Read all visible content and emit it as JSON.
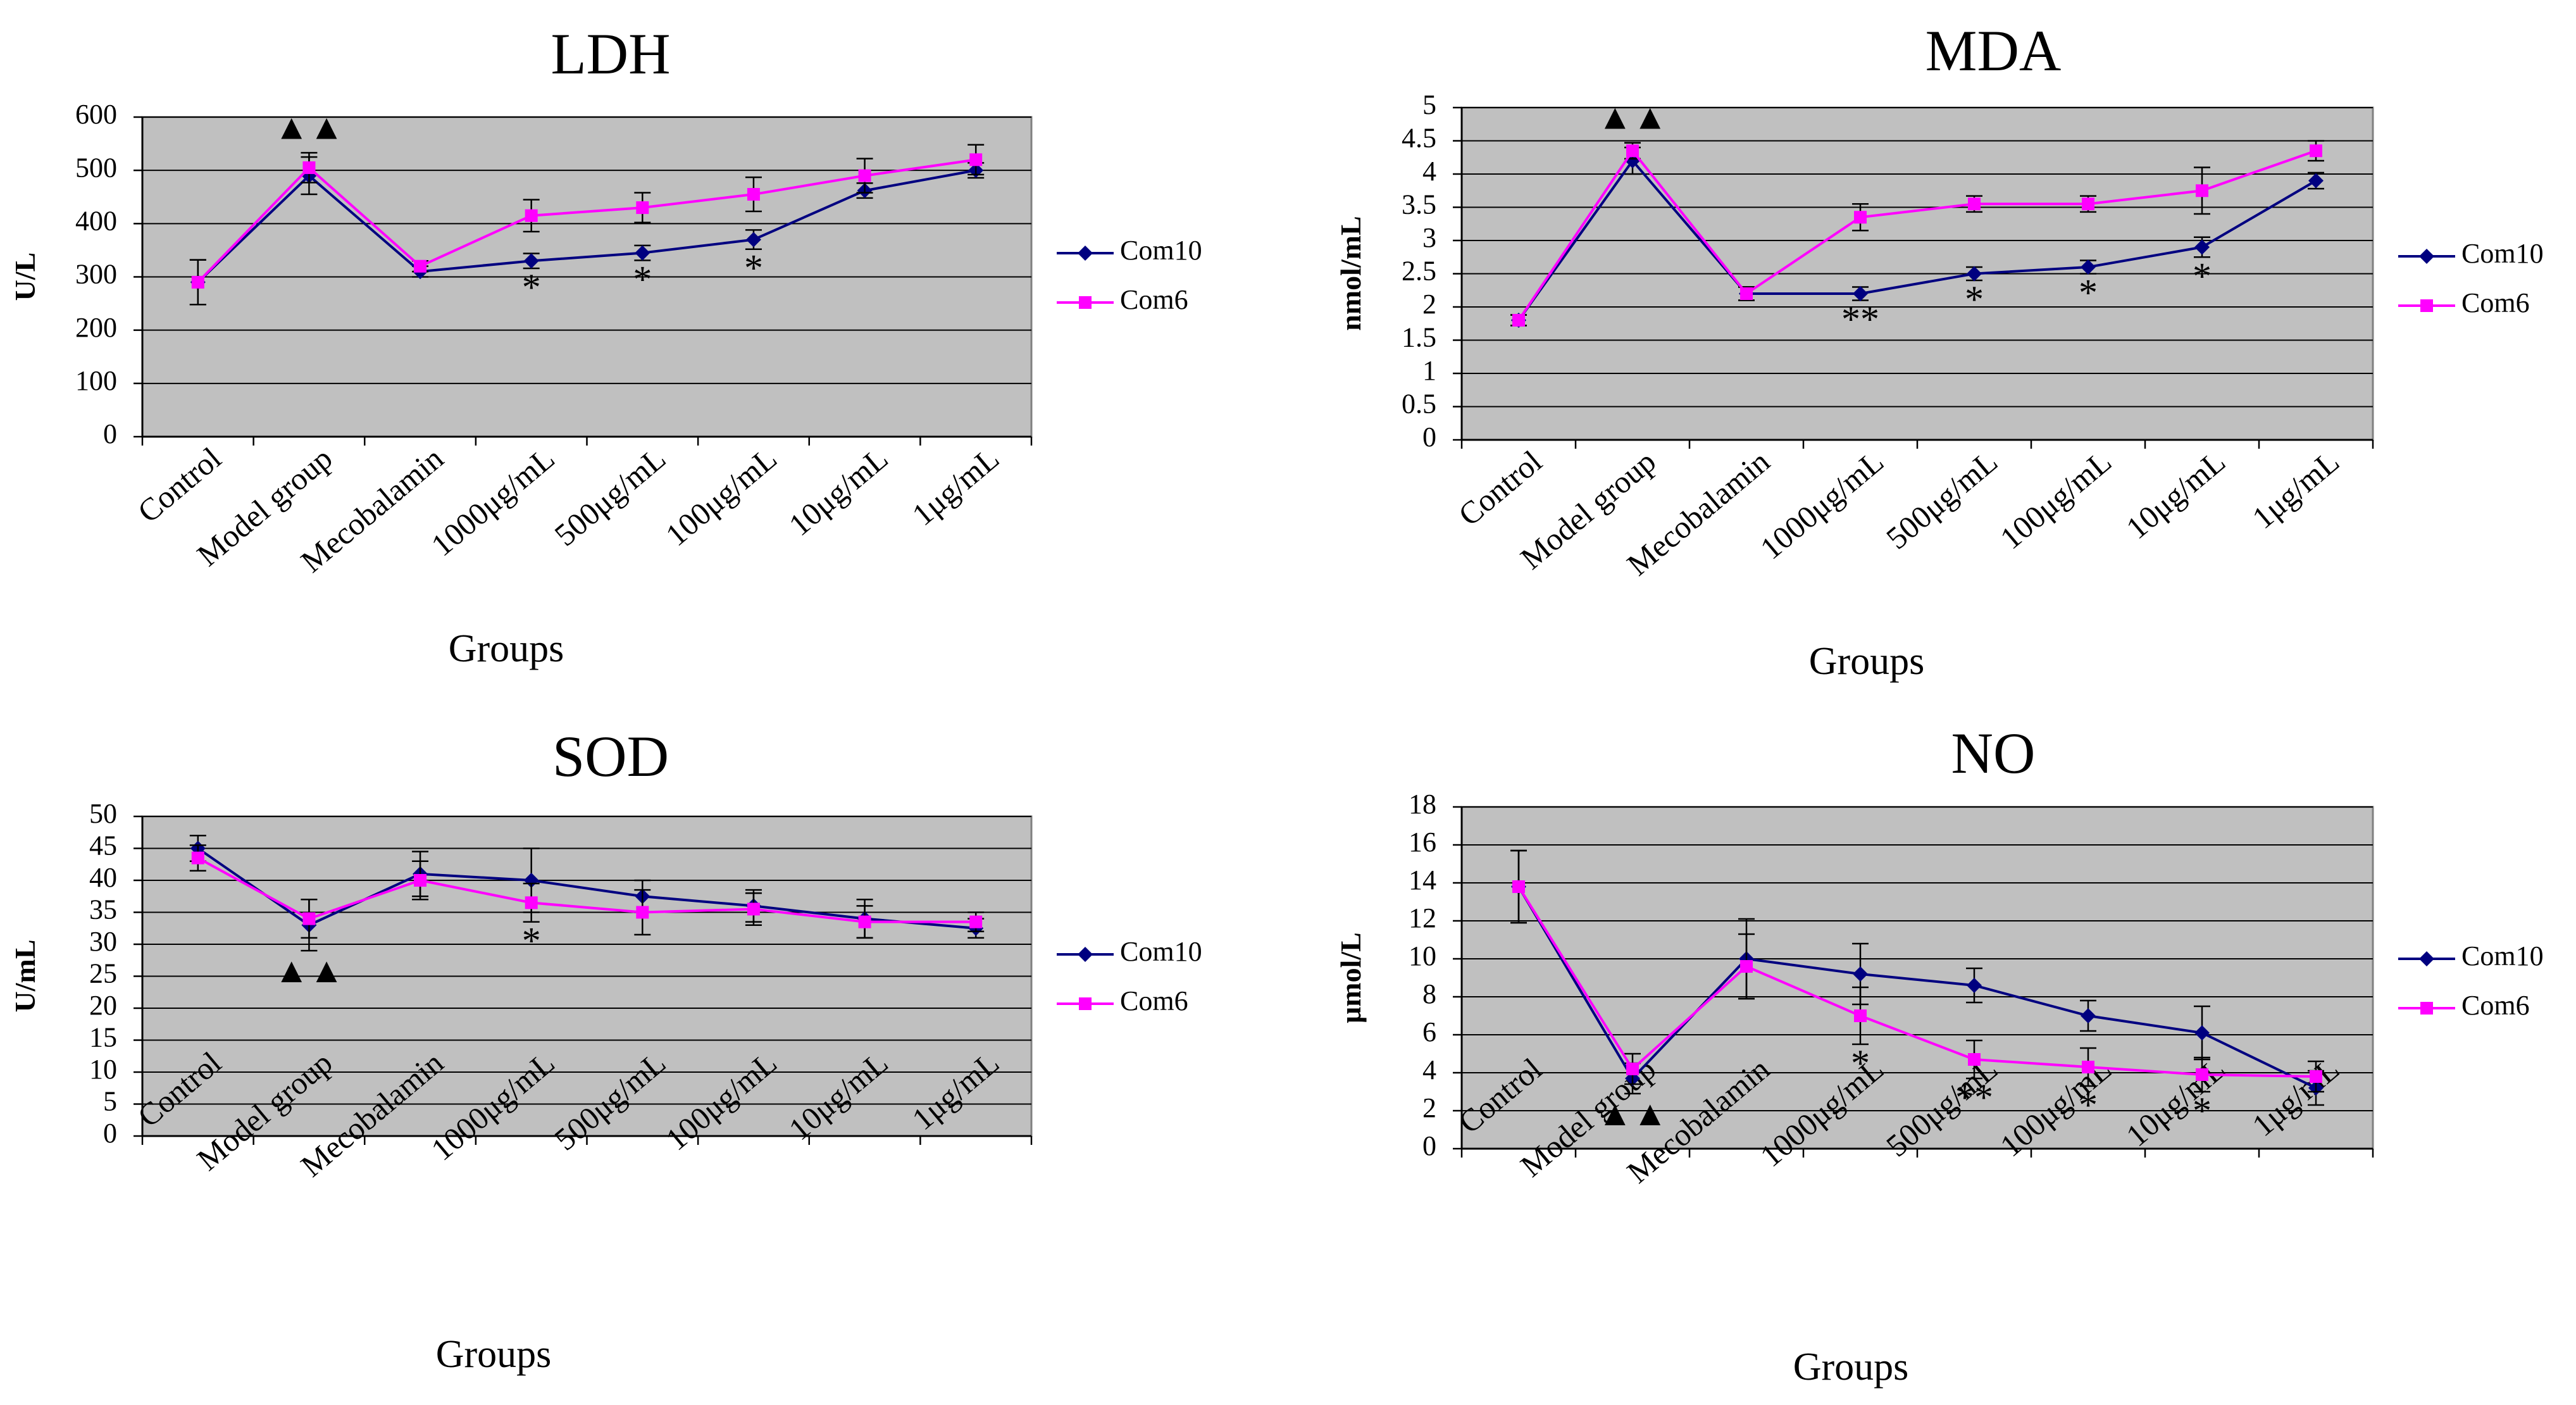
{
  "colors": {
    "plot_bg": "#c0c0c0",
    "grid": "#000000",
    "com10": "#000080",
    "com6": "#ff00ff"
  },
  "legend": {
    "series": [
      "Com10",
      "Com6"
    ]
  },
  "chart_data": [
    {
      "id": "ldh",
      "type": "line",
      "title": "LDH",
      "xlabel": "Groups",
      "ylabel": "U/L",
      "ylim": [
        0,
        600
      ],
      "yticks": [
        0,
        100,
        200,
        300,
        400,
        500,
        600
      ],
      "categories": [
        "Control",
        "Model group",
        "Mecobalamin",
        "1000μg/mL",
        "500μg/mL",
        "100μg/mL",
        "10μg/mL",
        "1μg/mL"
      ],
      "series": [
        {
          "name": "Com10",
          "values": [
            290,
            490,
            310,
            330,
            345,
            370,
            462,
            500
          ],
          "errors": [
            42,
            35,
            10,
            14,
            14,
            18,
            14,
            14
          ]
        },
        {
          "name": "Com6",
          "values": [
            290,
            505,
            320,
            415,
            430,
            455,
            490,
            520
          ],
          "errors": [
            42,
            28,
            10,
            30,
            28,
            32,
            32,
            28
          ]
        }
      ],
      "annotations": [
        {
          "category": 1,
          "text": "▲▲",
          "pos": "above"
        },
        {
          "category": 3,
          "text": "*",
          "pos": "below"
        },
        {
          "category": 4,
          "text": "*",
          "pos": "below"
        },
        {
          "category": 5,
          "text": "*",
          "pos": "below"
        }
      ]
    },
    {
      "id": "mda",
      "type": "line",
      "title": "MDA",
      "xlabel": "Groups",
      "ylabel": "nmol/mL",
      "ylim": [
        0,
        5
      ],
      "yticks": [
        0,
        0.5,
        1,
        1.5,
        2,
        2.5,
        3,
        3.5,
        4,
        4.5,
        5
      ],
      "categories": [
        "Control",
        "Model group",
        "Mecobalamin",
        "1000μg/mL",
        "500μg/mL",
        "100μg/mL",
        "10μg/mL",
        "1μg/mL"
      ],
      "series": [
        {
          "name": "Com10",
          "values": [
            1.8,
            4.2,
            2.2,
            2.2,
            2.5,
            2.6,
            2.9,
            3.9
          ],
          "errors": [
            0.08,
            0.2,
            0.1,
            0.1,
            0.1,
            0.1,
            0.15,
            0.12
          ]
        },
        {
          "name": "Com6",
          "values": [
            1.8,
            4.35,
            2.2,
            3.35,
            3.55,
            3.55,
            3.75,
            4.35
          ],
          "errors": [
            0.08,
            0.12,
            0.1,
            0.2,
            0.12,
            0.12,
            0.35,
            0.15
          ]
        }
      ],
      "annotations": [
        {
          "category": 1,
          "text": "▲▲",
          "pos": "above"
        },
        {
          "category": 3,
          "text": "**",
          "pos": "below"
        },
        {
          "category": 4,
          "text": "*",
          "pos": "below"
        },
        {
          "category": 5,
          "text": "*",
          "pos": "below"
        },
        {
          "category": 6,
          "text": "*",
          "pos": "below"
        }
      ]
    },
    {
      "id": "sod",
      "type": "line",
      "title": "SOD",
      "xlabel": "Groups",
      "ylabel": "U/mL",
      "ylim": [
        0,
        50
      ],
      "yticks": [
        0,
        5,
        10,
        15,
        20,
        25,
        30,
        35,
        40,
        45,
        50
      ],
      "categories": [
        "Control",
        "Model group",
        "Mecobalamin",
        "1000μg/mL",
        "500μg/mL",
        "100μg/mL",
        "10μg/mL",
        "1μg/mL"
      ],
      "series": [
        {
          "name": "Com10",
          "values": [
            45,
            33,
            41,
            40,
            37.5,
            36,
            34,
            32.5
          ],
          "errors": [
            2,
            4,
            3.5,
            5,
            2.5,
            2.5,
            3,
            1.5
          ]
        },
        {
          "name": "Com6",
          "values": [
            43.5,
            34,
            40,
            36.5,
            35,
            35.5,
            33.5,
            33.5
          ],
          "errors": [
            2,
            3,
            3,
            3,
            3.5,
            2.5,
            2.5,
            1.5
          ]
        }
      ],
      "annotations": [
        {
          "category": 1,
          "text": "▲▲",
          "pos": "below"
        },
        {
          "category": 3,
          "text": "*",
          "pos": "below"
        }
      ]
    },
    {
      "id": "no",
      "type": "line",
      "title": "NO",
      "xlabel": "Groups",
      "ylabel": "μmol/L",
      "ylim": [
        0,
        18
      ],
      "yticks": [
        0,
        2,
        4,
        6,
        8,
        10,
        12,
        14,
        16,
        18
      ],
      "categories": [
        "Control",
        "Model group",
        "Mecobalamin",
        "1000μg/mL",
        "500μg/mL",
        "100μg/mL",
        "10μg/mL",
        "1μg/mL"
      ],
      "series": [
        {
          "name": "Com10",
          "values": [
            13.8,
            3.7,
            10,
            9.2,
            8.6,
            7,
            6.1,
            3.2
          ],
          "errors": [
            1.9,
            0.8,
            2.1,
            1.6,
            0.9,
            0.8,
            1.4,
            0.9
          ]
        },
        {
          "name": "Com6",
          "values": [
            13.8,
            4.2,
            9.6,
            7,
            4.7,
            4.3,
            3.9,
            3.8
          ],
          "errors": [
            1.9,
            0.8,
            1.7,
            1.5,
            1.0,
            1.0,
            0.9,
            0.8
          ]
        }
      ],
      "annotations": [
        {
          "category": 1,
          "text": "▲▲",
          "pos": "below"
        },
        {
          "category": 3,
          "text": "*",
          "pos": "below"
        },
        {
          "category": 4,
          "text": "**",
          "pos": "below"
        },
        {
          "category": 5,
          "text": "*",
          "pos": "below"
        },
        {
          "category": 6,
          "text": "*",
          "pos": "below"
        }
      ]
    }
  ]
}
